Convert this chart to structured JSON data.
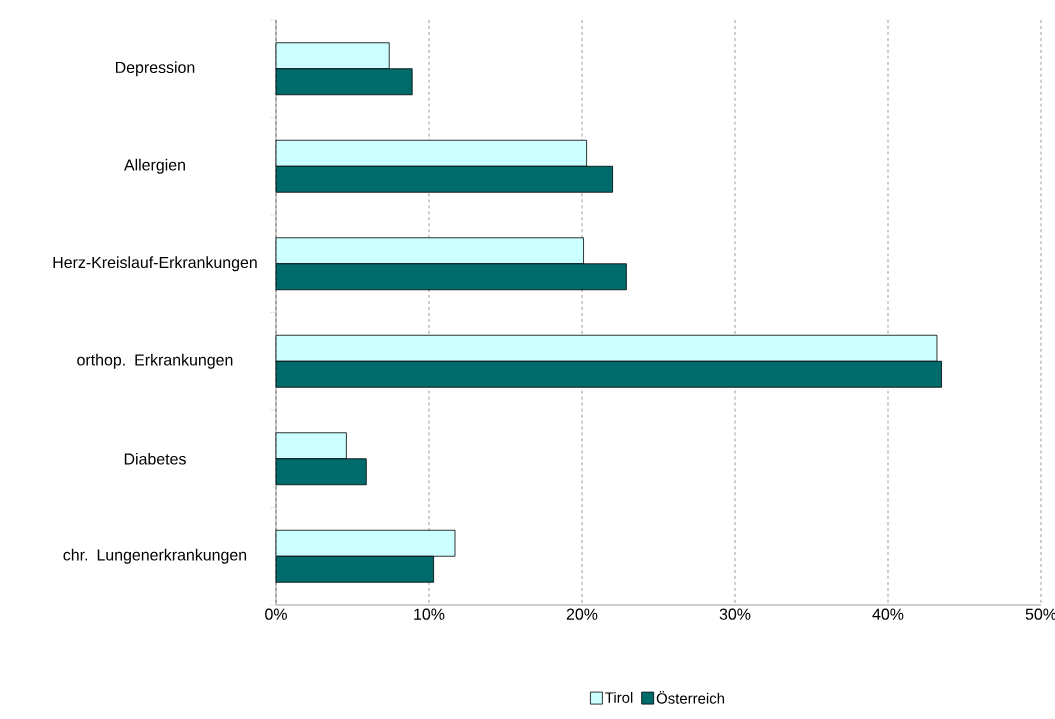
{
  "chart_data": {
    "type": "bar",
    "orientation": "horizontal",
    "categories": [
      "Depression",
      "Allergien",
      "Herz-Kreislauf-Erkrankungen",
      "orthop. Erkrankungen",
      "Diabetes",
      "chr. Lungenerkrankungen"
    ],
    "series": [
      {
        "name": "Tirol",
        "color": "#ccffff",
        "values": [
          7.4,
          20.3,
          20.1,
          43.2,
          4.6,
          11.7
        ]
      },
      {
        "name": "Österreich",
        "color": "#006b6b",
        "values": [
          8.9,
          22.0,
          22.9,
          43.5,
          5.9,
          10.3
        ]
      }
    ],
    "xlim": [
      0,
      50
    ],
    "xticks": [
      {
        "value": 0,
        "label": "0%"
      },
      {
        "value": 10,
        "label": "10%"
      },
      {
        "value": 20,
        "label": "20%"
      },
      {
        "value": 30,
        "label": "30%"
      },
      {
        "value": 40,
        "label": "40%"
      },
      {
        "value": 50,
        "label": "50%"
      }
    ],
    "grid": "x",
    "legend": "bottom"
  }
}
